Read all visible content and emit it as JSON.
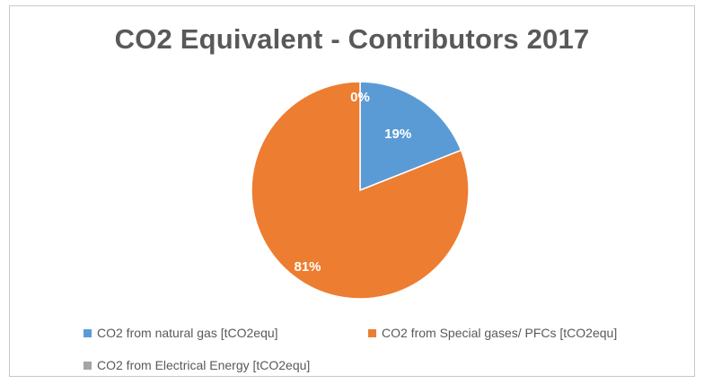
{
  "chart_data": {
    "type": "pie",
    "title": "CO2 Equivalent - Contributors 2017",
    "slices": [
      {
        "label": "CO2 from natural gas [tCO2equ]",
        "value": 19,
        "display": "19%",
        "color": "#5b9bd5"
      },
      {
        "label": "CO2 from Special gases/ PFCs [tCO2equ]",
        "value": 81,
        "display": "81%",
        "color": "#ed7d31"
      },
      {
        "label": "CO2 from Electrical Energy [tCO2equ]",
        "value": 0,
        "display": "0%",
        "color": "#a5a5a5"
      }
    ],
    "legend_position": "bottom"
  }
}
